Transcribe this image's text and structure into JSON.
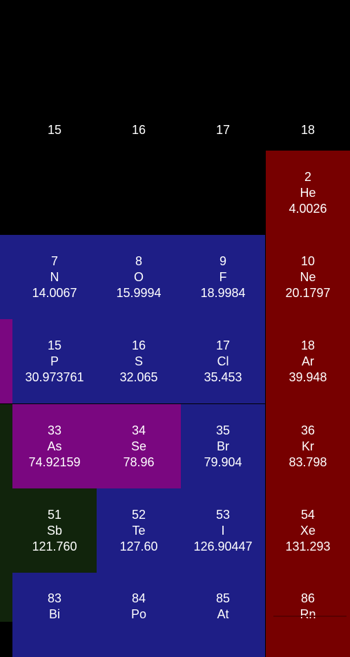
{
  "colors": {
    "background": "#000000",
    "nonmetal_blue": "#1e1e86",
    "noble_gas_red": "#770000",
    "metalloid_purple": "#7a0780",
    "poor_metal_green": "#11240c",
    "text": "#ffffff"
  },
  "group_headers": [
    "15",
    "16",
    "17",
    "18"
  ],
  "elements": [
    {
      "number": "2",
      "symbol": "He",
      "mass": "4.0026",
      "category": "noble_gas_red"
    },
    {
      "number": "7",
      "symbol": "N",
      "mass": "14.0067",
      "category": "nonmetal_blue"
    },
    {
      "number": "8",
      "symbol": "O",
      "mass": "15.9994",
      "category": "nonmetal_blue"
    },
    {
      "number": "9",
      "symbol": "F",
      "mass": "18.9984",
      "category": "nonmetal_blue"
    },
    {
      "number": "10",
      "symbol": "Ne",
      "mass": "20.1797",
      "category": "noble_gas_red"
    },
    {
      "number": "15",
      "symbol": "P",
      "mass": "30.973761",
      "category": "nonmetal_blue"
    },
    {
      "number": "16",
      "symbol": "S",
      "mass": "32.065",
      "category": "nonmetal_blue"
    },
    {
      "number": "17",
      "symbol": "Cl",
      "mass": "35.453",
      "category": "nonmetal_blue"
    },
    {
      "number": "18",
      "symbol": "Ar",
      "mass": "39.948",
      "category": "noble_gas_red"
    },
    {
      "number": "33",
      "symbol": "As",
      "mass": "74.92159",
      "category": "metalloid_purple"
    },
    {
      "number": "34",
      "symbol": "Se",
      "mass": "78.96",
      "category": "metalloid_purple"
    },
    {
      "number": "35",
      "symbol": "Br",
      "mass": "79.904",
      "category": "nonmetal_blue"
    },
    {
      "number": "36",
      "symbol": "Kr",
      "mass": "83.798",
      "category": "noble_gas_red"
    },
    {
      "number": "51",
      "symbol": "Sb",
      "mass": "121.760",
      "category": "poor_metal_green"
    },
    {
      "number": "52",
      "symbol": "Te",
      "mass": "127.60",
      "category": "nonmetal_blue"
    },
    {
      "number": "53",
      "symbol": "I",
      "mass": "126.90447",
      "category": "nonmetal_blue"
    },
    {
      "number": "54",
      "symbol": "Xe",
      "mass": "131.293",
      "category": "noble_gas_red"
    },
    {
      "number": "83",
      "symbol": "Bi",
      "mass": "",
      "category": "nonmetal_blue"
    },
    {
      "number": "84",
      "symbol": "Po",
      "mass": "",
      "category": "nonmetal_blue"
    },
    {
      "number": "85",
      "symbol": "At",
      "mass": "",
      "category": "nonmetal_blue"
    },
    {
      "number": "86",
      "symbol": "Rn",
      "mass": "",
      "category": "noble_gas_red"
    }
  ],
  "edge_strips": [
    {
      "category": "metalloid_purple"
    },
    {
      "category": "poor_metal_green"
    }
  ]
}
